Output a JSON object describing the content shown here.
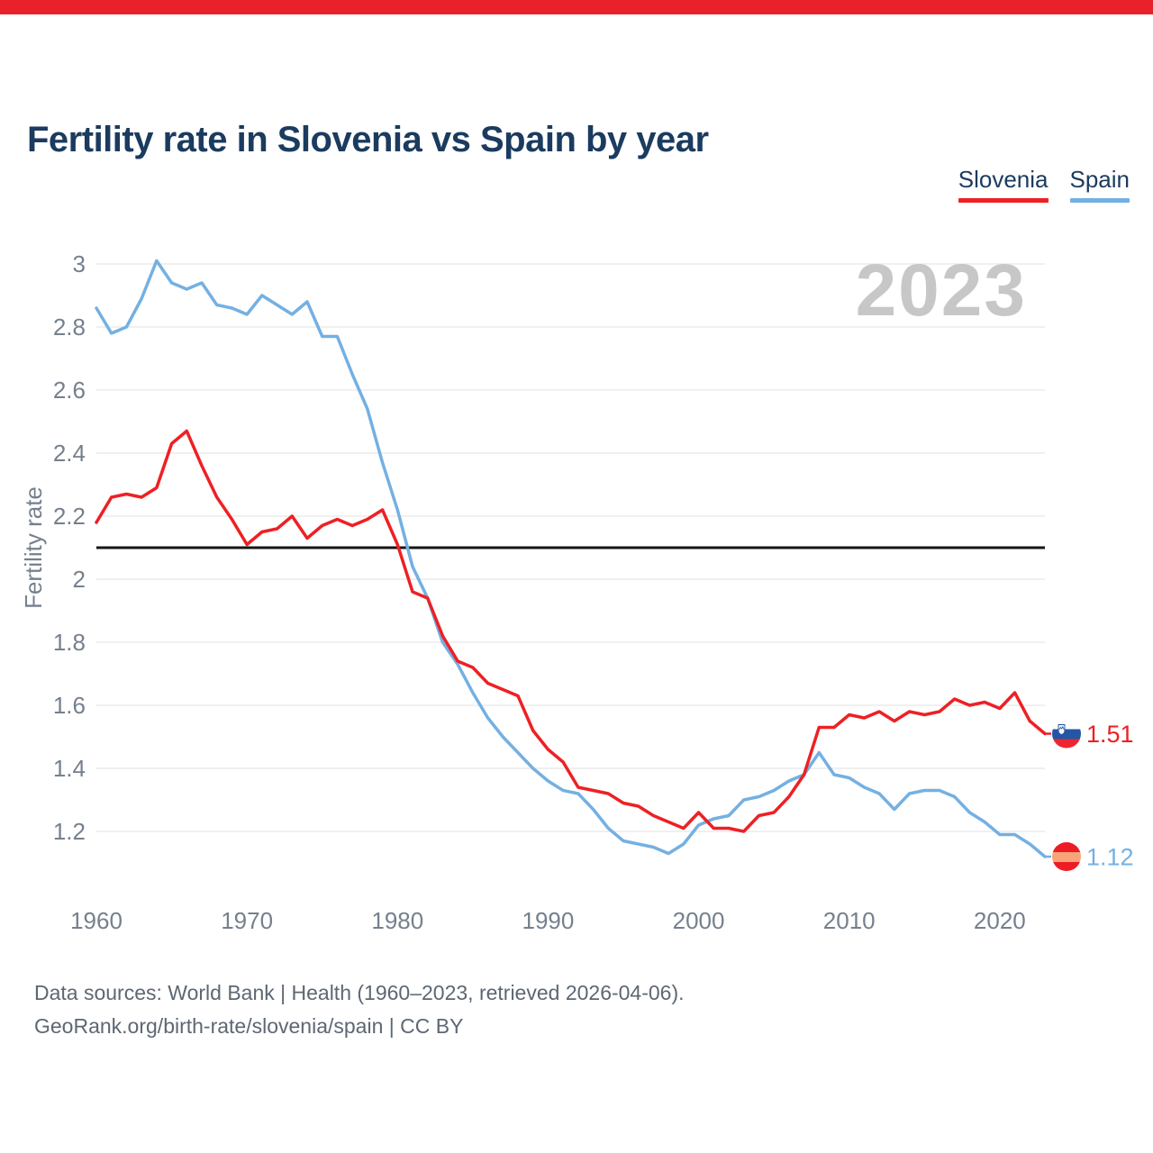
{
  "page": {
    "top_bar_color": "#e8212a"
  },
  "header": {
    "title": "Fertility rate in Slovenia vs Spain by year"
  },
  "legend": [
    {
      "label": "Slovenia",
      "color": "#ee2024"
    },
    {
      "label": "Spain",
      "color": "#74b0e2"
    }
  ],
  "watermark": "2023",
  "chart_data": {
    "type": "line",
    "title": "Fertility rate in Slovenia vs Spain by year",
    "xlabel": "",
    "ylabel": "Fertility rate",
    "xlim": [
      1960,
      2023
    ],
    "ylim": [
      1.05,
      3.05
    ],
    "grid": "horizontal",
    "x_ticks": [
      1960,
      1970,
      1980,
      1990,
      2000,
      2010,
      2020
    ],
    "y_ticks": [
      3,
      2.8,
      2.6,
      2.4,
      2.2,
      2,
      1.8,
      1.6,
      1.4,
      1.2
    ],
    "reference_line": {
      "value": 2.1,
      "color": "#161616"
    },
    "years": [
      1960,
      1961,
      1962,
      1963,
      1964,
      1965,
      1966,
      1967,
      1968,
      1969,
      1970,
      1971,
      1972,
      1973,
      1974,
      1975,
      1976,
      1977,
      1978,
      1979,
      1980,
      1981,
      1982,
      1983,
      1984,
      1985,
      1986,
      1987,
      1988,
      1989,
      1990,
      1991,
      1992,
      1993,
      1994,
      1995,
      1996,
      1997,
      1998,
      1999,
      2000,
      2001,
      2002,
      2003,
      2004,
      2005,
      2006,
      2007,
      2008,
      2009,
      2010,
      2011,
      2012,
      2013,
      2014,
      2015,
      2016,
      2017,
      2018,
      2019,
      2020,
      2021,
      2022,
      2023
    ],
    "series": [
      {
        "name": "Spain",
        "color": "#74b0e2",
        "end_label": "1.12",
        "flag": "spain",
        "values": [
          2.86,
          2.78,
          2.8,
          2.89,
          3.01,
          2.94,
          2.92,
          2.94,
          2.87,
          2.86,
          2.84,
          2.9,
          2.87,
          2.84,
          2.88,
          2.77,
          2.77,
          2.65,
          2.54,
          2.37,
          2.22,
          2.04,
          1.94,
          1.8,
          1.73,
          1.64,
          1.56,
          1.5,
          1.45,
          1.4,
          1.36,
          1.33,
          1.32,
          1.27,
          1.21,
          1.17,
          1.16,
          1.15,
          1.13,
          1.16,
          1.22,
          1.24,
          1.25,
          1.3,
          1.31,
          1.33,
          1.36,
          1.38,
          1.45,
          1.38,
          1.37,
          1.34,
          1.32,
          1.27,
          1.32,
          1.33,
          1.33,
          1.31,
          1.26,
          1.23,
          1.19,
          1.19,
          1.16,
          1.12
        ]
      },
      {
        "name": "Slovenia",
        "color": "#ee2024",
        "end_label": "1.51",
        "flag": "slovenia",
        "values": [
          2.18,
          2.26,
          2.27,
          2.26,
          2.29,
          2.43,
          2.47,
          2.36,
          2.26,
          2.19,
          2.11,
          2.15,
          2.16,
          2.2,
          2.13,
          2.17,
          2.19,
          2.17,
          2.19,
          2.22,
          2.11,
          1.96,
          1.94,
          1.82,
          1.74,
          1.72,
          1.67,
          1.65,
          1.63,
          1.52,
          1.46,
          1.42,
          1.34,
          1.33,
          1.32,
          1.29,
          1.28,
          1.25,
          1.23,
          1.21,
          1.26,
          1.21,
          1.21,
          1.2,
          1.25,
          1.26,
          1.31,
          1.38,
          1.53,
          1.53,
          1.57,
          1.56,
          1.58,
          1.55,
          1.58,
          1.57,
          1.58,
          1.62,
          1.6,
          1.61,
          1.59,
          1.64,
          1.55,
          1.51
        ]
      }
    ],
    "legend_position": "top-right"
  },
  "flags": {
    "slovenia": {
      "bands": [
        "#ffffff",
        "#2456a4",
        "#ee2530"
      ]
    },
    "spain": {
      "bands": [
        "#ee1c24",
        "#f8a37a",
        "#ee1c24"
      ]
    }
  },
  "axis_colors": {
    "tick_text": "#75808d",
    "gridline": "#e8e8e8",
    "watermark": "#c7c7c7"
  },
  "footer": {
    "line1": "Data sources: World Bank | Health (1960–2023, retrieved 2026-04-06).",
    "line2": "GeoRank.org/birth-rate/slovenia/spain | CC BY"
  }
}
